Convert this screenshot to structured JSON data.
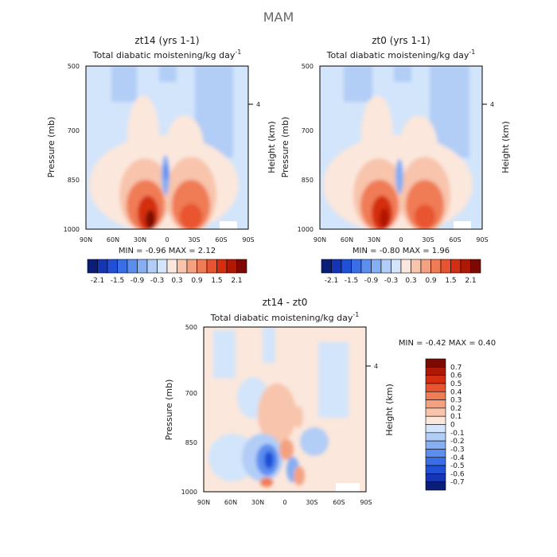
{
  "figure_title": "MAM",
  "panels": [
    {
      "title": "zt14 (yrs 1-1)",
      "subtitle": "Total diabatic moistening/kg day",
      "subtitle_sup": "-1",
      "ylabel": "Pressure (mb)",
      "ylabel_right": "Height (km)",
      "stats": "MIN = -0.96 MAX = 2.12"
    },
    {
      "title": "zt0 (yrs 1-1)",
      "subtitle": "Total diabatic moistening/kg day",
      "subtitle_sup": "-1",
      "ylabel": "Pressure (mb)",
      "ylabel_right": "Height (km)",
      "stats": "MIN = -0.80 MAX = 1.96"
    },
    {
      "title": "zt14 - zt0",
      "subtitle": "Total diabatic moistening/kg day",
      "subtitle_sup": "-1",
      "ylabel": "Pressure (mb)",
      "ylabel_right": "Height (km)",
      "stats": "MIN = -0.42 MAX = 0.40"
    }
  ],
  "axes": {
    "x_ticks": [
      "90N",
      "60N",
      "30N",
      "0",
      "30S",
      "60S",
      "90S"
    ],
    "y_ticks": [
      "500",
      "700",
      "850",
      "1000"
    ],
    "y_tick_values": [
      500,
      700,
      850,
      1000
    ],
    "height_tick": "4"
  },
  "colorbar_top": {
    "labels": [
      "-2.1",
      "-1.5",
      "-0.9",
      "-0.3",
      "0.3",
      "0.9",
      "1.5",
      "2.1"
    ],
    "colors": [
      "#0a1e78",
      "#1535b4",
      "#1f50d6",
      "#3a6ee6",
      "#5c8ef0",
      "#86aef3",
      "#b2cdf6",
      "#d3e5fb",
      "#fbe7dc",
      "#f8c4ac",
      "#f4a181",
      "#f07c56",
      "#e8542f",
      "#d42d10",
      "#b01806",
      "#7d0a02"
    ]
  },
  "colorbar_diff": {
    "labels": [
      "0.7",
      "0.6",
      "0.5",
      "0.4",
      "0.3",
      "0.2",
      "0.1",
      "0",
      "-0.1",
      "-0.2",
      "-0.3",
      "-0.4",
      "-0.5",
      "-0.6",
      "-0.7"
    ],
    "colors": [
      "#7d0a02",
      "#b01806",
      "#d42d10",
      "#e8542f",
      "#f07c56",
      "#f4a181",
      "#f8c4ac",
      "#fbe7dc",
      "#d3e5fb",
      "#b2cdf6",
      "#86aef3",
      "#5c8ef0",
      "#3a6ee6",
      "#1f50d6",
      "#1535b4",
      "#0a1e78"
    ]
  },
  "chart_data": [
    {
      "type": "heatmap",
      "title": "zt14 (yrs 1-1)",
      "subtitle": "Total diabatic moistening/kg day-1",
      "xlabel": "",
      "ylabel": "Pressure (mb)",
      "ylabel_right": "Height (km)",
      "x": [
        "90N",
        "60N",
        "30N",
        "0",
        "30S",
        "60S",
        "90S"
      ],
      "ylim": [
        1000,
        500
      ],
      "min": -0.96,
      "max": 2.12,
      "features": [
        {
          "lat": 20,
          "p": 975,
          "value": 2.1
        },
        {
          "lat": -15,
          "p": 950,
          "value": 1.8
        },
        {
          "lat": 0,
          "p": 860,
          "value": -0.9
        },
        {
          "lat": 0,
          "p": 620,
          "value": 0.3
        },
        {
          "lat": 10,
          "p": 560,
          "value": -0.3
        },
        {
          "lat": -45,
          "p": 560,
          "value": -0.3
        }
      ]
    },
    {
      "type": "heatmap",
      "title": "zt0 (yrs 1-1)",
      "subtitle": "Total diabatic moistening/kg day-1",
      "xlabel": "",
      "ylabel": "Pressure (mb)",
      "ylabel_right": "Height (km)",
      "x": [
        "90N",
        "60N",
        "30N",
        "0",
        "30S",
        "60S",
        "90S"
      ],
      "ylim": [
        1000,
        500
      ],
      "min": -0.8,
      "max": 1.96,
      "features": [
        {
          "lat": 15,
          "p": 975,
          "value": 1.9
        },
        {
          "lat": -20,
          "p": 955,
          "value": 1.6
        },
        {
          "lat": 0,
          "p": 860,
          "value": -0.6
        },
        {
          "lat": 5,
          "p": 620,
          "value": 0.3
        },
        {
          "lat": 10,
          "p": 560,
          "value": -0.3
        },
        {
          "lat": -45,
          "p": 560,
          "value": -0.3
        }
      ]
    },
    {
      "type": "heatmap",
      "title": "zt14 - zt0",
      "subtitle": "Total diabatic moistening/kg day-1",
      "xlabel": "",
      "ylabel": "Pressure (mb)",
      "ylabel_right": "Height (km)",
      "x": [
        "90N",
        "60N",
        "30N",
        "0",
        "30S",
        "60S",
        "90S"
      ],
      "ylim": [
        1000,
        500
      ],
      "min": -0.42,
      "max": 0.4,
      "features": [
        {
          "lat": 15,
          "p": 920,
          "value": -0.4
        },
        {
          "lat": 3,
          "p": 890,
          "value": 0.3
        },
        {
          "lat": -12,
          "p": 930,
          "value": -0.3
        },
        {
          "lat": -25,
          "p": 960,
          "value": 0.3
        },
        {
          "lat": 25,
          "p": 980,
          "value": 0.3
        },
        {
          "lat": -45,
          "p": 870,
          "value": -0.2
        },
        {
          "lat": -5,
          "p": 720,
          "value": 0.1
        }
      ]
    }
  ]
}
